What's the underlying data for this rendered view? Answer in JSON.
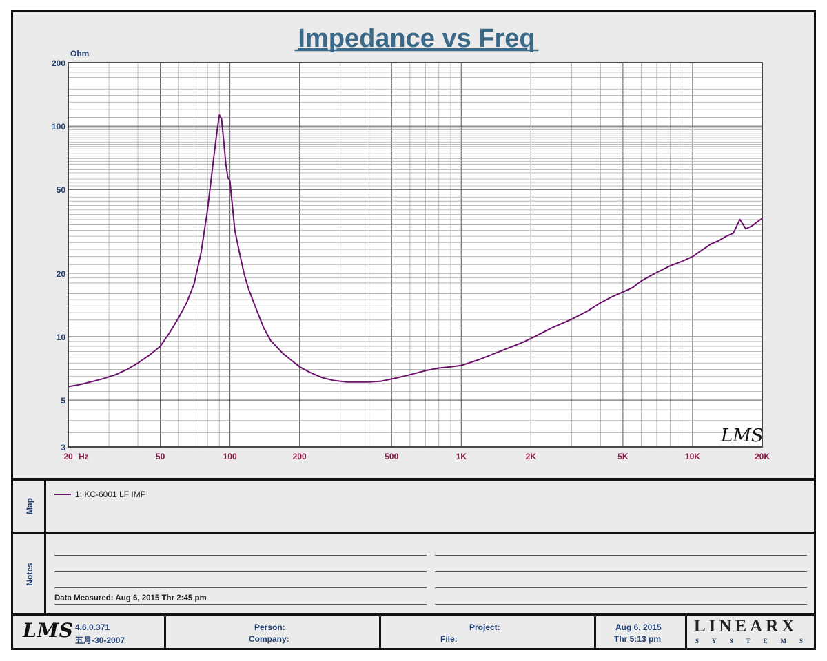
{
  "chart_data": {
    "type": "line",
    "title": "Impedance vs Freq",
    "xlabel": "Hz",
    "ylabel": "Ohm",
    "xscale": "log",
    "yscale": "log",
    "xlim": [
      20,
      20000
    ],
    "ylim": [
      3,
      200
    ],
    "grid": true,
    "x_tick_labels": [
      {
        "v": 20,
        "t": "20"
      },
      {
        "v": 50,
        "t": "50"
      },
      {
        "v": 100,
        "t": "100"
      },
      {
        "v": 200,
        "t": "200"
      },
      {
        "v": 500,
        "t": "500"
      },
      {
        "v": 1000,
        "t": "1K"
      },
      {
        "v": 2000,
        "t": "2K"
      },
      {
        "v": 5000,
        "t": "5K"
      },
      {
        "v": 10000,
        "t": "10K"
      },
      {
        "v": 20000,
        "t": "20K"
      }
    ],
    "y_tick_labels": [
      {
        "v": 3,
        "t": "3"
      },
      {
        "v": 5,
        "t": "5"
      },
      {
        "v": 10,
        "t": "10"
      },
      {
        "v": 20,
        "t": "20"
      },
      {
        "v": 50,
        "t": "50"
      },
      {
        "v": 100,
        "t": "100"
      },
      {
        "v": 200,
        "t": "200"
      }
    ],
    "series": [
      {
        "name": "1: KC-6001 LF IMP",
        "color": "#6b106b",
        "x": [
          20,
          22,
          25,
          28,
          32,
          36,
          40,
          45,
          50,
          55,
          60,
          65,
          70,
          75,
          80,
          85,
          88,
          90,
          92,
          94,
          96,
          98,
          100,
          105,
          110,
          115,
          120,
          130,
          140,
          150,
          160,
          170,
          180,
          200,
          220,
          250,
          280,
          320,
          360,
          400,
          450,
          500,
          550,
          600,
          700,
          800,
          900,
          1000,
          1200,
          1500,
          1800,
          2000,
          2300,
          2500,
          3000,
          3500,
          4000,
          4500,
          5000,
          5500,
          6000,
          7000,
          8000,
          9000,
          10000,
          11000,
          12000,
          13000,
          14000,
          15000,
          16000,
          17000,
          18000,
          20000
        ],
        "y": [
          5.8,
          5.9,
          6.1,
          6.3,
          6.6,
          7.0,
          7.5,
          8.2,
          9.0,
          10.5,
          12.3,
          14.5,
          17.8,
          25.0,
          40.0,
          70.0,
          95.0,
          113.0,
          108.0,
          85.0,
          66.0,
          57.0,
          55.0,
          32.0,
          25.0,
          20.0,
          17.0,
          13.5,
          11.0,
          9.6,
          8.9,
          8.3,
          7.9,
          7.2,
          6.8,
          6.4,
          6.2,
          6.1,
          6.1,
          6.1,
          6.15,
          6.3,
          6.45,
          6.6,
          6.9,
          7.1,
          7.2,
          7.3,
          7.8,
          8.6,
          9.3,
          9.8,
          10.6,
          11.1,
          12.1,
          13.2,
          14.5,
          15.5,
          16.3,
          17.1,
          18.4,
          20.2,
          21.7,
          22.8,
          24.0,
          25.8,
          27.5,
          28.6,
          30.0,
          31.0,
          36.0,
          32.5,
          33.5,
          36.5
        ]
      }
    ]
  },
  "map": {
    "label": "Map",
    "legend_entry": "1: KC-6001 LF IMP"
  },
  "notes": {
    "label": "Notes",
    "data_measured": "Data Measured: Aug  6, 2015  Thr  2:45 pm"
  },
  "watermark": "LMS",
  "footer": {
    "logo": "LMS",
    "version": "4.6.0.371",
    "build_date": "五月-30-2007",
    "person_label": "Person:",
    "company_label": "Company:",
    "project_label": "Project:",
    "file_label": "File:",
    "date": "Aug  6, 2015",
    "time": "Thr  5:13 pm",
    "brand_name": "LINEARX",
    "brand_sub": "SYSTEMS"
  },
  "colors": {
    "trace": "#6b106b",
    "axis_labels": "#1f3f73",
    "x_tick_labels": "#8b1a4a",
    "title": "#3a6a8a"
  }
}
